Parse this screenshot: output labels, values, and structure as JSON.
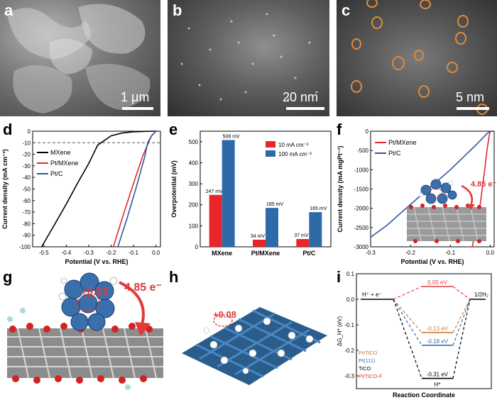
{
  "panels": {
    "a": {
      "letter": "a",
      "scale": "1 μm"
    },
    "b": {
      "letter": "b",
      "scale": "20 nm"
    },
    "c": {
      "letter": "c",
      "scale": "5 nm"
    },
    "d": {
      "letter": "d"
    },
    "e": {
      "letter": "e"
    },
    "f": {
      "letter": "f"
    },
    "g": {
      "letter": "g",
      "charge": "+0.63",
      "transfer": "4.85 e⁻"
    },
    "h": {
      "letter": "h",
      "charge": "+0.08"
    },
    "i": {
      "letter": "i"
    }
  },
  "colors": {
    "mxene": "#000000",
    "pt_mxene": "#e8262a",
    "pt_c": "#2a5b9c",
    "bar10": "#e8262a",
    "bar100": "#2e6aa8",
    "tico_pt": "#c87a3a",
    "pt111": "#3a6fae",
    "tico": "#000000",
    "pt_tico_f": "#e03a3a"
  },
  "chart_data": [
    {
      "id": "d",
      "type": "line",
      "xlabel": "Potential (V vs. RHE)",
      "ylabel": "Current density (mA cm⁻²)",
      "xlim": [
        -0.55,
        0.02
      ],
      "ylim": [
        -100,
        0
      ],
      "xticks": [
        "-0.5",
        "-0.4",
        "-0.3",
        "-0.2",
        "-0.1",
        "0.0"
      ],
      "yticks": [
        "0",
        "-10",
        "-20",
        "-30",
        "-40",
        "-50",
        "-60",
        "-70",
        "-80",
        "-90",
        "-100"
      ],
      "reference_line_y": -10,
      "legend": "top-left",
      "series": [
        {
          "name": "MXene",
          "x": [
            -0.51,
            -0.45,
            -0.4,
            -0.35,
            -0.3,
            -0.26,
            -0.2,
            -0.15,
            -0.1,
            -0.05,
            -0.02,
            0.0
          ],
          "y": [
            -100,
            -80,
            -63,
            -45,
            -28,
            -12,
            -4,
            -1.5,
            -0.5,
            -0.2,
            0,
            0
          ]
        },
        {
          "name": "Pt/MXene",
          "x": [
            -0.19,
            -0.15,
            -0.1,
            -0.06,
            -0.034,
            -0.02,
            0.0,
            0.01
          ],
          "y": [
            -100,
            -75,
            -45,
            -22,
            -10,
            -4,
            0,
            0
          ]
        },
        {
          "name": "Pt/C",
          "x": [
            -0.17,
            -0.13,
            -0.09,
            -0.05,
            -0.037,
            -0.02,
            0.0,
            0.01
          ],
          "y": [
            -100,
            -76,
            -50,
            -22,
            -10,
            -4,
            0,
            0
          ]
        }
      ]
    },
    {
      "id": "e",
      "type": "bar",
      "ylabel": "Overpotential (mV)",
      "categories": [
        "MXene",
        "Pt/MXene",
        "Pt/C"
      ],
      "ylim": [
        0,
        550
      ],
      "yticks": [
        "0",
        "100",
        "200",
        "300",
        "400",
        "500"
      ],
      "legend": "top-right",
      "series": [
        {
          "name": "10 mA cm⁻²",
          "values": [
            247,
            34,
            37
          ],
          "labels": [
            "247 mV",
            "34 mV",
            "37 mV"
          ]
        },
        {
          "name": "100 mA cm⁻²",
          "values": [
            508,
            185,
            165
          ],
          "labels": [
            "508 mV",
            "185 mV",
            "165 mV"
          ]
        }
      ]
    },
    {
      "id": "f",
      "type": "line",
      "xlabel": "Potential (V vs. RHE)",
      "ylabel": "Current density (mA mgPt⁻¹)",
      "xlim": [
        -0.3,
        0.01
      ],
      "ylim": [
        -3000,
        0
      ],
      "xticks": [
        "-0.3",
        "-0.2",
        "-0.1",
        "0.0"
      ],
      "yticks": [
        "0",
        "-500",
        "-1000",
        "-1500",
        "-2000",
        "-2500",
        "-3000"
      ],
      "legend": "top-left",
      "series": [
        {
          "name": "Pt/MXene",
          "x": [
            -0.045,
            -0.035,
            -0.025,
            -0.015,
            -0.008,
            -0.003,
            0.0,
            0.01
          ],
          "y": [
            -3000,
            -2500,
            -1900,
            -1100,
            -500,
            -150,
            0,
            0
          ]
        },
        {
          "name": "Pt/C",
          "x": [
            -0.3,
            -0.26,
            -0.2,
            -0.15,
            -0.1,
            -0.06,
            -0.03,
            -0.01,
            0.0,
            0.01
          ],
          "y": [
            -2750,
            -2450,
            -1900,
            -1450,
            -1000,
            -600,
            -300,
            -80,
            0,
            0
          ]
        }
      ]
    },
    {
      "id": "i",
      "type": "line",
      "xlabel": "Reaction Coordinate",
      "ylabel": "ΔG_H* (eV)",
      "ylim": [
        -0.35,
        0.1
      ],
      "yticks": [
        "0.1",
        "0.0",
        "-0.1",
        "-0.2",
        "-0.3"
      ],
      "state_labels": [
        "H⁺ + e⁻",
        "H*",
        "1/2H₂"
      ],
      "legend": "bottom-left",
      "series": [
        {
          "name": "Pt/TiCO",
          "values": [
            0,
            -0.13,
            0
          ],
          "label": "-0.13 eV"
        },
        {
          "name": "Pt(111)",
          "values": [
            0,
            -0.18,
            0
          ],
          "label": "-0.18 eV"
        },
        {
          "name": "TiCO",
          "values": [
            0,
            -0.31,
            0
          ],
          "label": "-0.31 eV"
        },
        {
          "name": "Pt/TiCO-F",
          "values": [
            0,
            0.05,
            0
          ],
          "label": "0.05 eV"
        }
      ]
    }
  ]
}
